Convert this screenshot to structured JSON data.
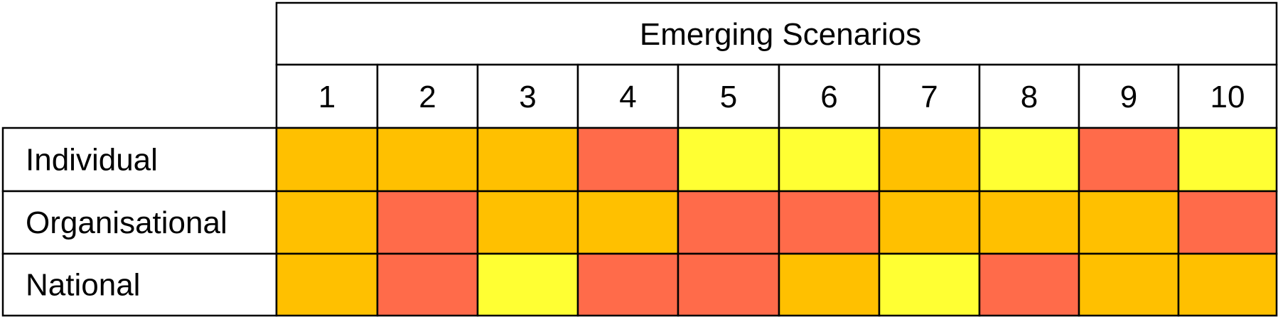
{
  "chart_data": {
    "type": "heatmap",
    "title": "Emerging Scenarios",
    "columns": [
      "1",
      "2",
      "3",
      "4",
      "5",
      "6",
      "7",
      "8",
      "9",
      "10"
    ],
    "rows": [
      {
        "label": "Individual",
        "levels": [
          "orange",
          "orange",
          "orange",
          "red",
          "yellow",
          "yellow",
          "orange",
          "yellow",
          "red",
          "yellow"
        ]
      },
      {
        "label": "Organisational",
        "levels": [
          "orange",
          "red",
          "orange",
          "orange",
          "red",
          "red",
          "orange",
          "orange",
          "orange",
          "red"
        ]
      },
      {
        "label": "National",
        "levels": [
          "orange",
          "red",
          "yellow",
          "red",
          "red",
          "orange",
          "yellow",
          "red",
          "orange",
          "orange"
        ]
      }
    ],
    "colors": {
      "yellow": "#FFFF33",
      "orange": "#FFC000",
      "red": "#FF6B4A"
    },
    "legend": "none",
    "grid": true
  }
}
